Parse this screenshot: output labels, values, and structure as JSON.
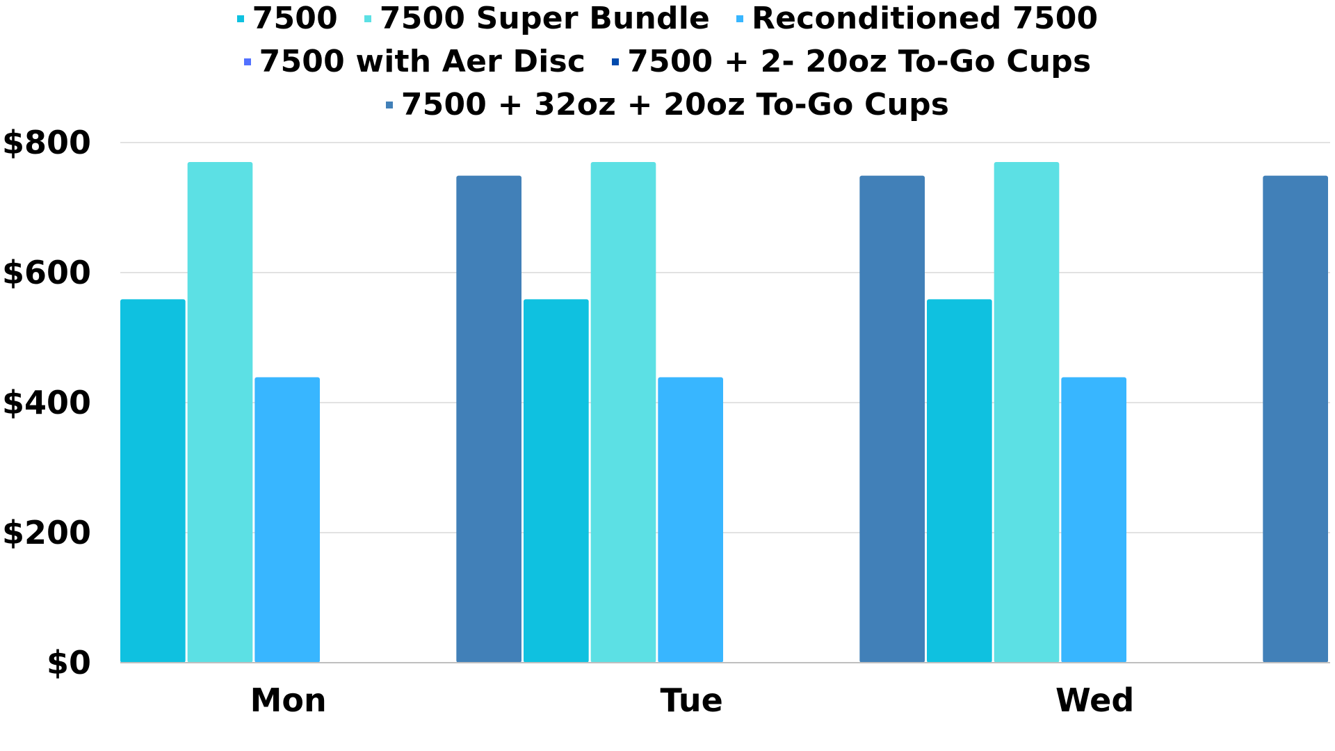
{
  "chart_data": {
    "type": "bar",
    "categories": [
      "Mon",
      "Tue",
      "Wed"
    ],
    "series": [
      {
        "name": "7500",
        "color": "#0fc1e0",
        "values": [
          559,
          559,
          559
        ]
      },
      {
        "name": "7500 Super Bundle",
        "color": "#5ce0e4",
        "values": [
          770,
          770,
          770
        ]
      },
      {
        "name": "Reconditioned 7500",
        "color": "#38b6ff",
        "values": [
          439,
          439,
          439
        ]
      },
      {
        "name": "7500 with Aer Disc",
        "color": "#5271ff",
        "values": [
          0,
          0,
          0
        ]
      },
      {
        "name": "7500 + 2- 20oz To-Go Cups",
        "color": "#004aad",
        "values": [
          0,
          0,
          0
        ]
      },
      {
        "name": "7500 + 32oz + 20oz To-Go Cups",
        "color": "#4180b8",
        "values": [
          749,
          749,
          749
        ]
      }
    ],
    "yticks": [
      "$0",
      "$200",
      "$400",
      "$600",
      "$800"
    ],
    "ylim": [
      0,
      800
    ],
    "grid": true,
    "legend_position": "top"
  },
  "legend_rows": [
    [
      0,
      1,
      2
    ],
    [
      3,
      4
    ],
    [
      5
    ]
  ]
}
